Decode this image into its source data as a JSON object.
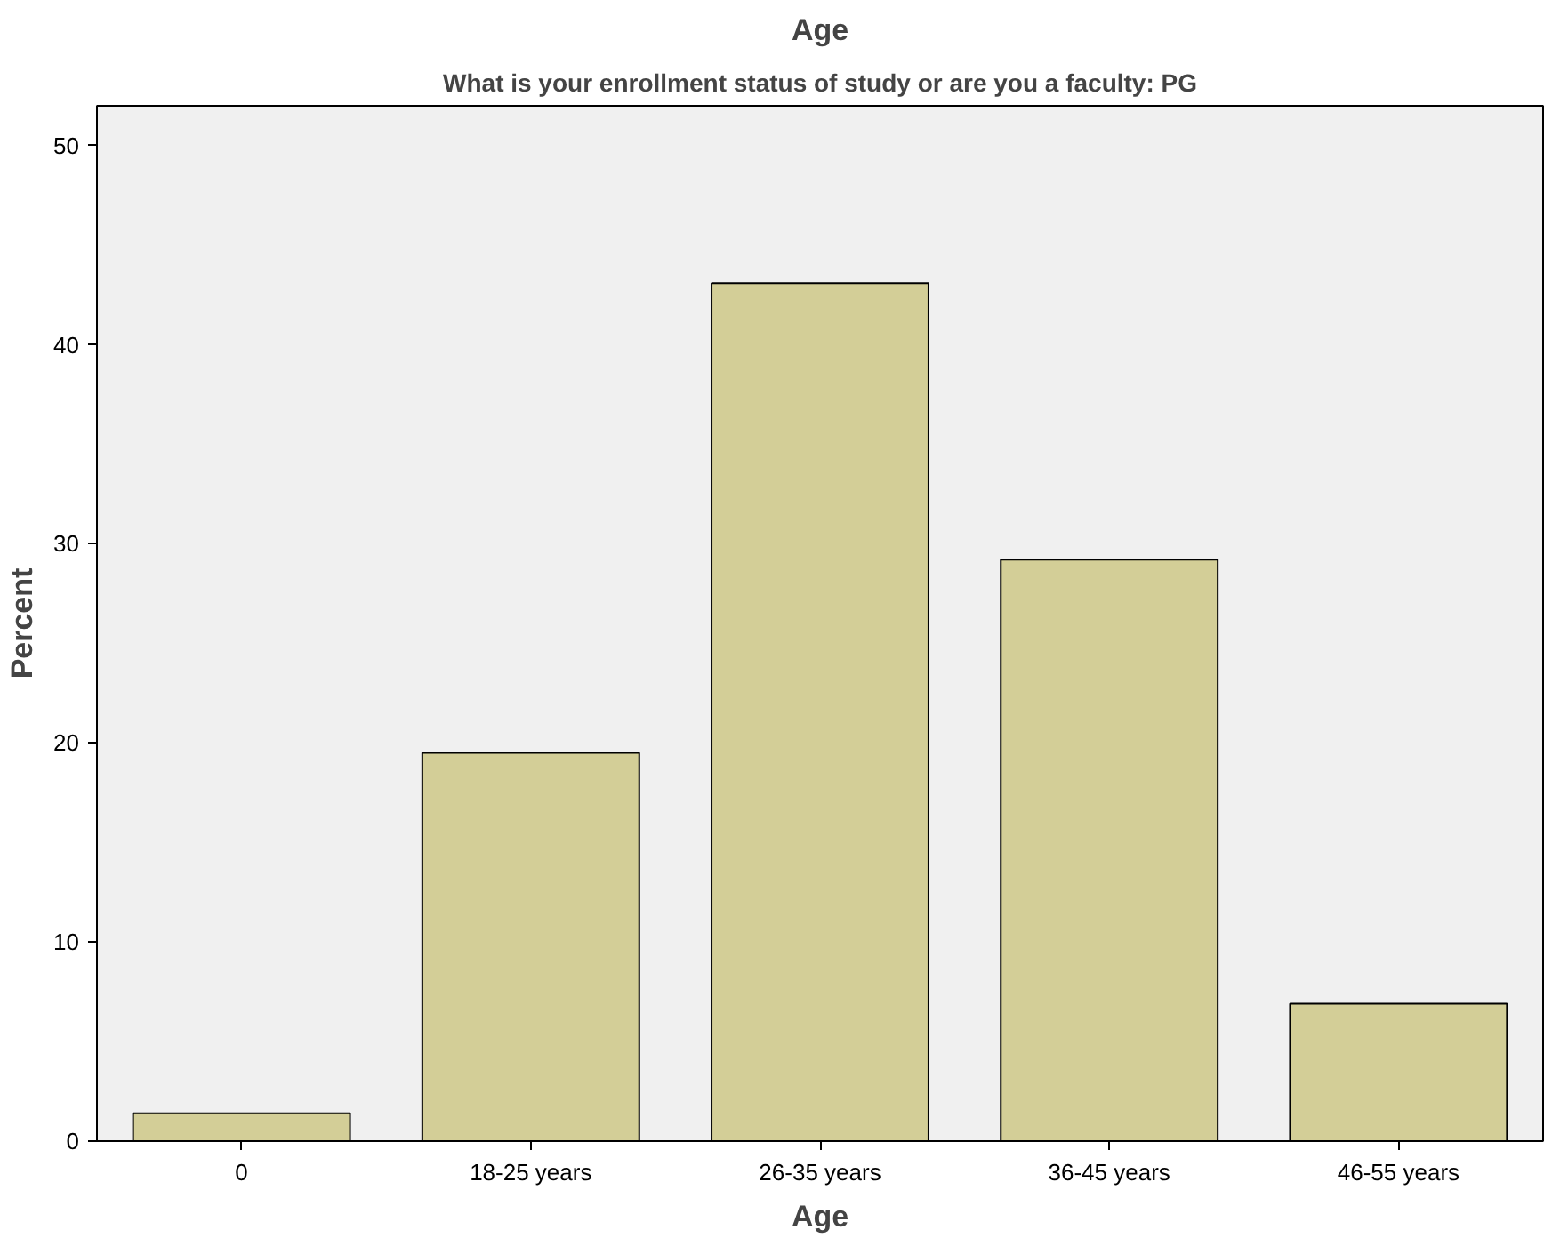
{
  "chart_data": {
    "type": "bar",
    "title": "Age",
    "subtitle": "What is your enrollment status of study or are you a faculty: PG",
    "xlabel": "Age",
    "ylabel": "Percent",
    "categories": [
      "0",
      "18-25 years",
      "26-35 years",
      "36-45 years",
      "46-55 years"
    ],
    "values": [
      1.4,
      19.5,
      43.1,
      29.2,
      6.9
    ],
    "color": "#d3ce97",
    "ylim": [
      0,
      52
    ],
    "yticks": [
      0,
      10,
      20,
      30,
      40,
      50
    ],
    "grid": false
  }
}
